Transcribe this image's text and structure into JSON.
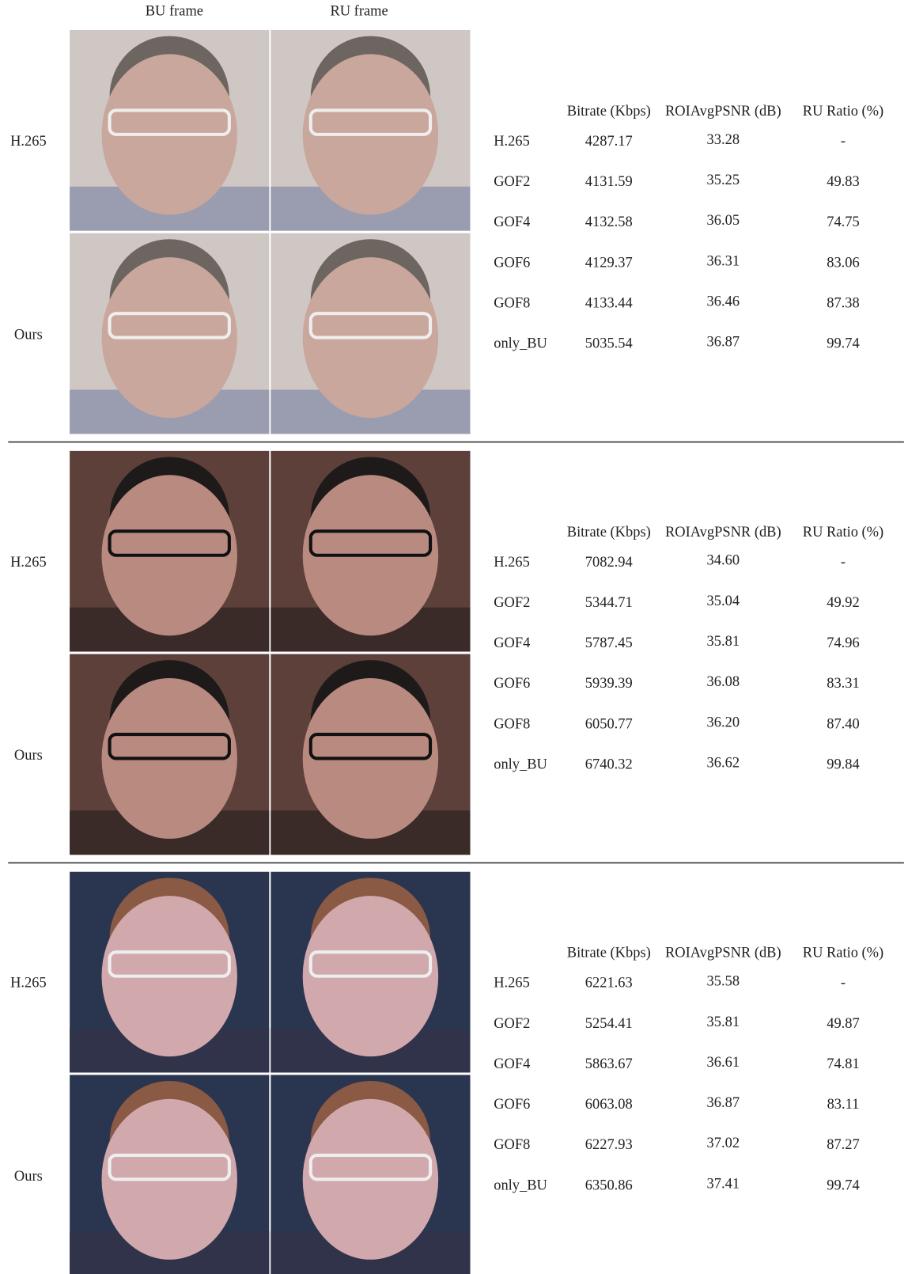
{
  "column_headers": {
    "bu_frame": "BU frame",
    "ru_frame": "RU frame"
  },
  "groups": [
    {
      "row_labels": [
        "H.265",
        "Ours"
      ],
      "table": {
        "headers": [
          "Bitrate (Kbps)",
          "ROIAvgPSNR (dB)",
          "RU Ratio (%)"
        ],
        "rows": [
          [
            "H.265",
            "4287.17",
            "33.28",
            "-"
          ],
          [
            "GOF2",
            "4131.59",
            "35.25",
            "49.83"
          ],
          [
            "GOF4",
            "4132.58",
            "36.05",
            "74.75"
          ],
          [
            "GOF6",
            "4129.37",
            "36.31",
            "83.06"
          ],
          [
            "GOF8",
            "4133.44",
            "36.46",
            "87.38"
          ],
          [
            "only_BU",
            "5035.54",
            "36.87",
            "99.74"
          ]
        ]
      }
    },
    {
      "row_labels": [
        "H.265",
        "Ours"
      ],
      "table": {
        "headers": [
          "Bitrate (Kbps)",
          "ROIAvgPSNR (dB)",
          "RU Ratio (%)"
        ],
        "rows": [
          [
            "H.265",
            "7082.94",
            "34.60",
            "-"
          ],
          [
            "GOF2",
            "5344.71",
            "35.04",
            "49.92"
          ],
          [
            "GOF4",
            "5787.45",
            "35.81",
            "74.96"
          ],
          [
            "GOF6",
            "5939.39",
            "36.08",
            "83.31"
          ],
          [
            "GOF8",
            "6050.77",
            "36.20",
            "87.40"
          ],
          [
            "only_BU",
            "6740.32",
            "36.62",
            "99.84"
          ]
        ]
      }
    },
    {
      "row_labels": [
        "H.265",
        "Ours"
      ],
      "table": {
        "headers": [
          "Bitrate (Kbps)",
          "ROIAvgPSNR (dB)",
          "RU Ratio (%)"
        ],
        "rows": [
          [
            "H.265",
            "6221.63",
            "35.58",
            "-"
          ],
          [
            "GOF2",
            "5254.41",
            "35.81",
            "49.87"
          ],
          [
            "GOF4",
            "5863.67",
            "36.61",
            "74.81"
          ],
          [
            "GOF6",
            "6063.08",
            "36.87",
            "83.11"
          ],
          [
            "GOF8",
            "6227.93",
            "37.02",
            "87.27"
          ],
          [
            "only_BU",
            "6350.86",
            "37.41",
            "99.74"
          ]
        ]
      }
    }
  ]
}
